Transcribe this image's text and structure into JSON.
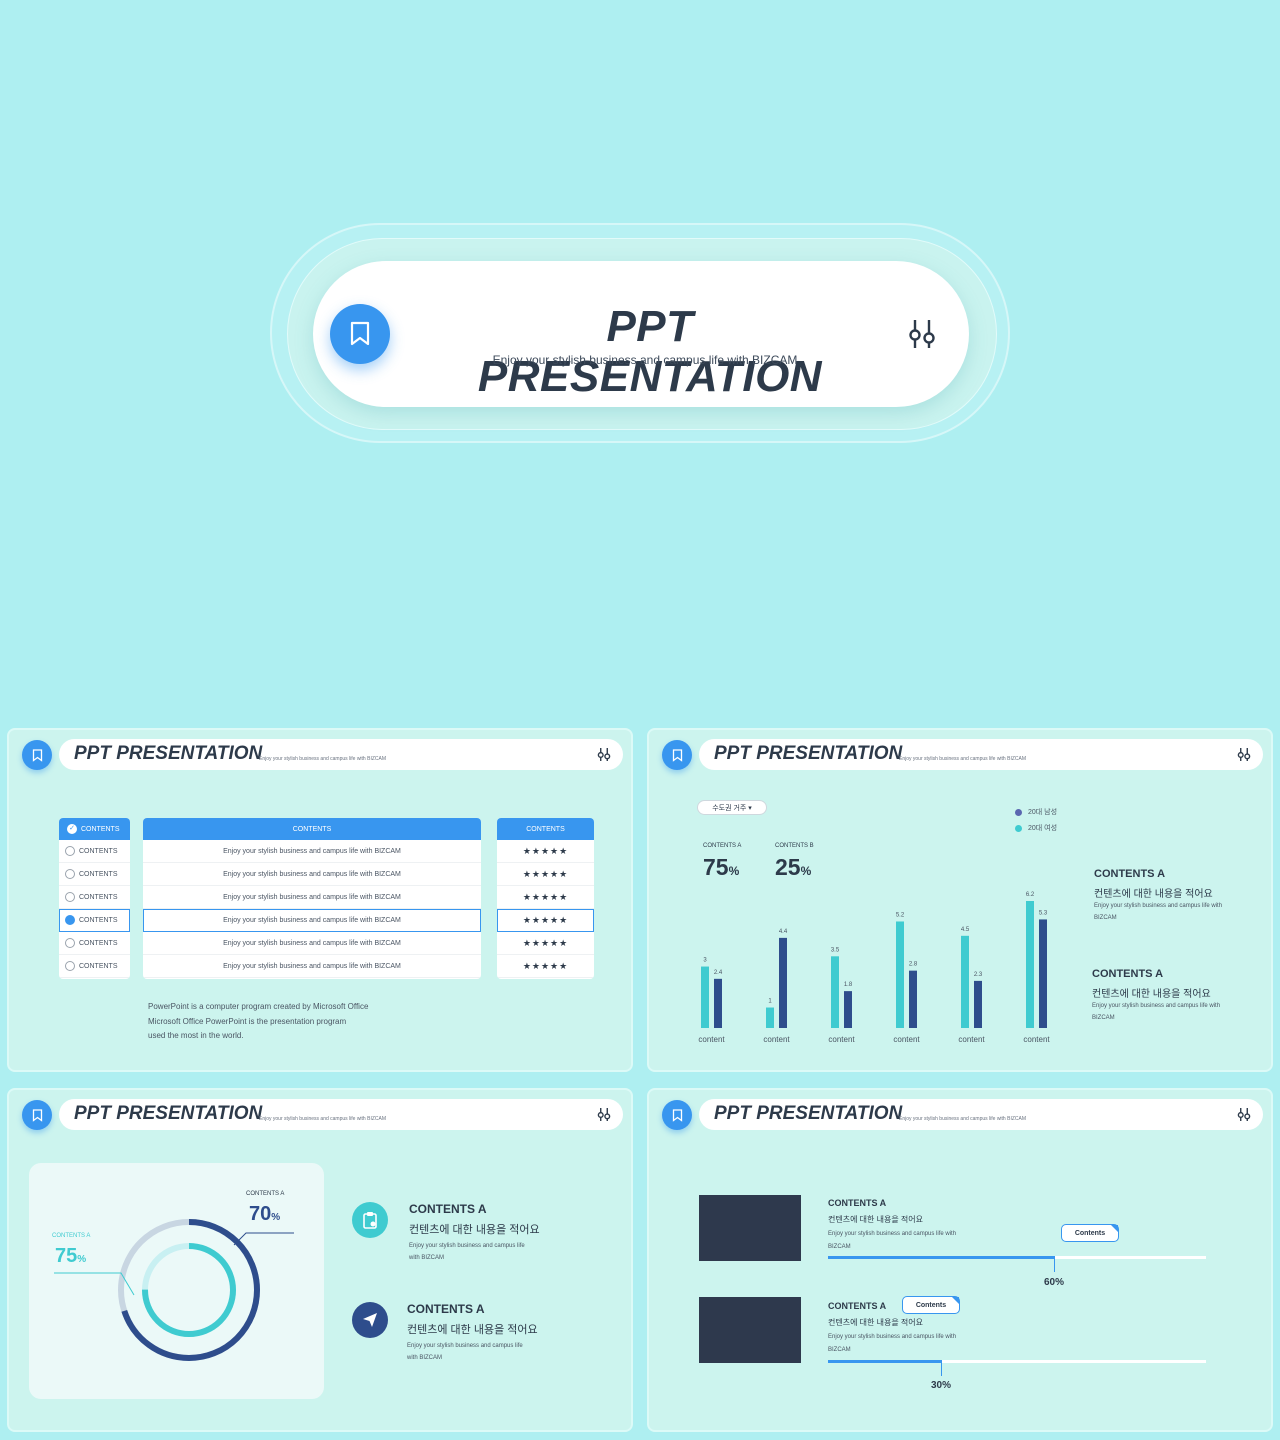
{
  "colors": {
    "accent": "#3896ef",
    "teal": "#3fcbd0",
    "navy": "#2e4d8c",
    "dark": "#2e394d",
    "background": "#aeeff1"
  },
  "hero": {
    "title": "PPT PRESENTATION",
    "subtitle": "Enjoy your stylish business and campus life with BIZCAM",
    "badge_icon": "bookmark-icon",
    "settings_icon": "sliders-icon"
  },
  "slide_header": {
    "title": "PPT PRESENTATION",
    "subtitle": "Enjoy your stylish business and campus life with BIZCAM"
  },
  "slide1": {
    "left_header": "CONTENTS",
    "left_rows": [
      "CONTENTS",
      "CONTENTS",
      "CONTENTS",
      "CONTENTS",
      "CONTENTS",
      "CONTENTS"
    ],
    "selected_row": 3,
    "middle_header": "CONTENTS",
    "middle_rows": [
      "Enjoy your stylish business and campus life with BIZCAM",
      "Enjoy your stylish business and campus life with BIZCAM",
      "Enjoy your stylish business and campus life with BIZCAM",
      "Enjoy your stylish business and campus life with BIZCAM",
      "Enjoy your stylish business and campus life with BIZCAM",
      "Enjoy your stylish business and campus life with BIZCAM"
    ],
    "right_header": "CONTENTS",
    "ratings": [
      5,
      5,
      5,
      5,
      5,
      5
    ],
    "note_lines": [
      "PowerPoint is a computer program created by Microsoft Office",
      "Microsoft Office PowerPoint is the presentation program",
      "used the most in the world."
    ]
  },
  "slide2": {
    "dropdown": "수도권 거주 ▾",
    "legend": [
      "20대 남성",
      "20대 여성"
    ],
    "kpis": [
      {
        "label": "CONTENTS A",
        "value": "75",
        "unit": "%"
      },
      {
        "label": "CONTENTS B",
        "value": "25",
        "unit": "%"
      }
    ],
    "side": [
      {
        "heading": "CONTENTS A",
        "korean": "컨텐츠에 대한 내용을 적어요",
        "text": "Enjoy your stylish business and campus life with BIZCAM"
      },
      {
        "heading": "CONTENTS A",
        "korean": "컨텐츠에 대한 내용을 적어요",
        "text": "Enjoy your stylish business and campus life with BIZCAM"
      }
    ]
  },
  "chart_data": {
    "type": "bar",
    "categories": [
      "content",
      "content",
      "content",
      "content",
      "content",
      "content"
    ],
    "series": [
      {
        "name": "20대 여성",
        "values": [
          3,
          1,
          3.5,
          5.2,
          4.5,
          6.2
        ],
        "color": "#3fcbd0"
      },
      {
        "name": "20대 남성",
        "values": [
          2.4,
          4.4,
          1.8,
          2.8,
          2.3,
          5.3
        ],
        "color": "#2e4d8c"
      }
    ],
    "ylim": [
      0,
      6.2
    ],
    "grid": false,
    "legend_position": "top-right"
  },
  "slide3": {
    "outer_label": "CONTENTS A",
    "outer_value": "70",
    "inner_label": "CONTENTS A",
    "inner_value": "75",
    "unit": "%",
    "outer_fraction": 0.7,
    "inner_fraction": 0.75,
    "items": [
      {
        "icon": "clipboard-icon",
        "heading": "CONTENTS A",
        "korean": "컨텐츠에 대한 내용을 적어요",
        "text_lines": [
          "Enjoy your stylish business and campus life",
          "with BIZCAM"
        ]
      },
      {
        "icon": "paper-plane-icon",
        "heading": "CONTENTS A",
        "korean": "컨텐츠에 대한 내용을 적어요",
        "text_lines": [
          "Enjoy your stylish business and campus life",
          "with BIZCAM"
        ]
      }
    ]
  },
  "slide4": {
    "items": [
      {
        "heading": "CONTENTS A",
        "korean": "컨텐츠에 대한 내용을 적어요",
        "text_lines": [
          "Enjoy your stylish business and campus life with",
          "BIZCAM"
        ],
        "tooltip": "Contents",
        "progress": 0.6,
        "percent": "60%"
      },
      {
        "heading": "CONTENTS A",
        "korean": "컨텐츠에 대한 내용을 적어요",
        "text_lines": [
          "Enjoy your stylish business and campus life with",
          "BIZCAM"
        ],
        "tooltip": "Contents",
        "progress": 0.3,
        "percent": "30%"
      }
    ]
  }
}
